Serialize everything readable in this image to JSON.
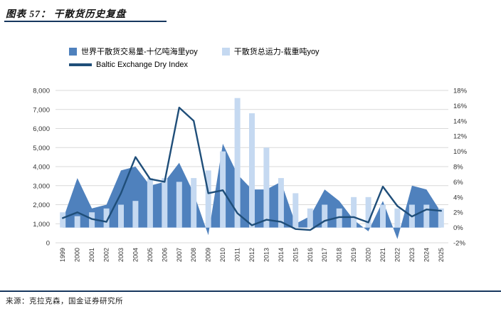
{
  "header": {
    "title": "图表 57： 干散货历史复盘"
  },
  "legend": [
    {
      "label": "世界干散货交易量-十亿吨海里yoy",
      "color": "#4f81bd",
      "kind": "square"
    },
    {
      "label": "干散货总运力-载重吨yoy",
      "color": "#c5d9f1",
      "kind": "square"
    },
    {
      "label": "Baltic Exchange Dry Index",
      "color": "#1f4e79",
      "kind": "line"
    }
  ],
  "footer": {
    "source": "来源：克拉克森，国金证券研究所"
  },
  "colors": {
    "accent_navy": "#17375e",
    "dark_blue": "#4f81bd",
    "light_blue": "#c5d9f1",
    "grid": "#d9d9d9"
  },
  "chart_data": {
    "type": "combo",
    "title": "干散货历史复盘",
    "categories": [
      "1999",
      "2000",
      "2001",
      "2002",
      "2003",
      "2004",
      "2005",
      "2006",
      "2007",
      "2008",
      "2009",
      "2010",
      "2011",
      "2012",
      "2013",
      "2014",
      "2015",
      "2016",
      "2017",
      "2018",
      "2019",
      "2020",
      "2021",
      "2022",
      "2023",
      "2024",
      "2025"
    ],
    "left_axis": {
      "min": 0,
      "max": 8000,
      "ticks": [
        "0",
        "1,000",
        "2,000",
        "3,000",
        "4,000",
        "5,000",
        "6,000",
        "7,000",
        "8,000"
      ]
    },
    "right_axis": {
      "min": -2,
      "max": 18,
      "ticks": [
        "-2%",
        "0%",
        "2%",
        "4%",
        "6%",
        "8%",
        "10%",
        "12%",
        "14%",
        "16%",
        "18%"
      ]
    },
    "grid": "horizontal",
    "legend_position": "top",
    "series": [
      {
        "name": "世界干散货交易量-十亿吨海里yoy",
        "type": "area",
        "axis": "right",
        "color": "#4f81bd",
        "values": [
          1,
          6.5,
          2.5,
          3,
          7.5,
          8,
          5.5,
          6,
          8.5,
          4.5,
          -1,
          11,
          7,
          5,
          5,
          6,
          0.5,
          1.5,
          5,
          3.5,
          1,
          -0.5,
          3.5,
          -1.5,
          5.5,
          5,
          2
        ]
      },
      {
        "name": "干散货总运力-载重吨yoy",
        "type": "bar",
        "axis": "right",
        "color": "#c5d9f1",
        "values": [
          2,
          1.5,
          2,
          2.5,
          3,
          3.5,
          6.5,
          6.5,
          6,
          6.5,
          7.5,
          10,
          17,
          15,
          10.5,
          6.5,
          4.5,
          2.5,
          3,
          2.5,
          4,
          4,
          3,
          2.5,
          3,
          3,
          2.5
        ]
      },
      {
        "name": "Baltic Exchange Dry Index",
        "type": "line",
        "axis": "left",
        "color": "#1f4e79",
        "values": [
          1300,
          1600,
          1250,
          1100,
          2600,
          4500,
          3350,
          3200,
          7100,
          6400,
          2600,
          2760,
          1550,
          920,
          1210,
          1100,
          720,
          670,
          1150,
          1350,
          1350,
          1070,
          2950,
          1930,
          1380,
          1750,
          1680
        ]
      }
    ]
  }
}
